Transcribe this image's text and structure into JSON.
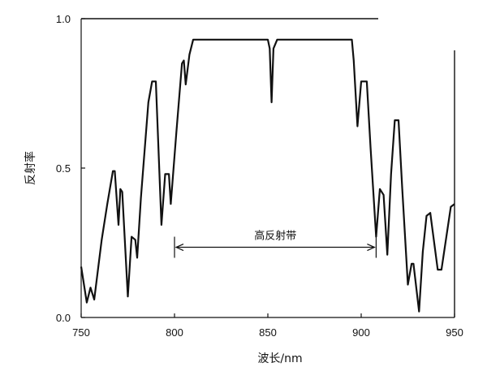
{
  "chart_data": {
    "type": "line",
    "title": "",
    "xlabel": "波长/nm",
    "ylabel": "反射率",
    "xlim": [
      750,
      950
    ],
    "ylim": [
      0.0,
      1.0
    ],
    "x_ticks": [
      750,
      800,
      850,
      900,
      950
    ],
    "y_ticks": [
      0.0,
      0.5,
      1.0
    ],
    "y_tick_labels": [
      "0.0",
      "0.5",
      "1.0"
    ],
    "grid": false,
    "legend": "none",
    "annotations": [
      {
        "text": "高反射带",
        "x_start": 800,
        "x_end": 908,
        "y": 0.235
      }
    ],
    "series": [
      {
        "values": [
          [
            750,
            0.17
          ],
          [
            753,
            0.05
          ],
          [
            755,
            0.1
          ],
          [
            757,
            0.06
          ],
          [
            761,
            0.26
          ],
          [
            764,
            0.38
          ],
          [
            767,
            0.49
          ],
          [
            768,
            0.49
          ],
          [
            770,
            0.31
          ],
          [
            771,
            0.43
          ],
          [
            772,
            0.42
          ],
          [
            775,
            0.07
          ],
          [
            777,
            0.27
          ],
          [
            779,
            0.26
          ],
          [
            780,
            0.2
          ],
          [
            782,
            0.4
          ],
          [
            786,
            0.72
          ],
          [
            788,
            0.79
          ],
          [
            790,
            0.79
          ],
          [
            793,
            0.31
          ],
          [
            795,
            0.48
          ],
          [
            797,
            0.48
          ],
          [
            798,
            0.38
          ],
          [
            801,
            0.62
          ],
          [
            804,
            0.85
          ],
          [
            805,
            0.86
          ],
          [
            806,
            0.78
          ],
          [
            808,
            0.88
          ],
          [
            810,
            0.93
          ],
          [
            830,
            0.93
          ],
          [
            850,
            0.93
          ],
          [
            851,
            0.9
          ],
          [
            852,
            0.72
          ],
          [
            853,
            0.9
          ],
          [
            855,
            0.93
          ],
          [
            875,
            0.93
          ],
          [
            895,
            0.93
          ],
          [
            896,
            0.86
          ],
          [
            898,
            0.64
          ],
          [
            900,
            0.79
          ],
          [
            903,
            0.79
          ],
          [
            905,
            0.57
          ],
          [
            908,
            0.27
          ],
          [
            910,
            0.43
          ],
          [
            912,
            0.41
          ],
          [
            914,
            0.21
          ],
          [
            916,
            0.48
          ],
          [
            918,
            0.66
          ],
          [
            920,
            0.66
          ],
          [
            922,
            0.43
          ],
          [
            925,
            0.11
          ],
          [
            927,
            0.18
          ],
          [
            928,
            0.18
          ],
          [
            931,
            0.02
          ],
          [
            933,
            0.22
          ],
          [
            935,
            0.34
          ],
          [
            937,
            0.35
          ],
          [
            941,
            0.16
          ],
          [
            943,
            0.16
          ],
          [
            948,
            0.37
          ],
          [
            950,
            0.38
          ]
        ]
      }
    ]
  }
}
